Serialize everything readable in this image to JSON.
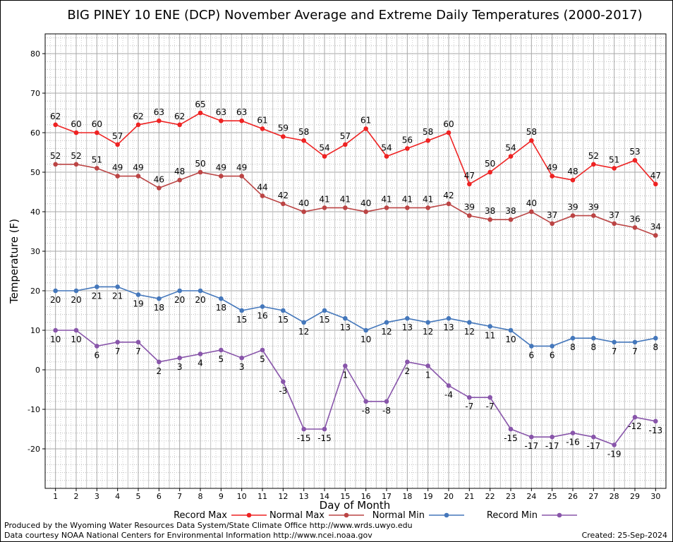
{
  "chart_data": {
    "type": "line",
    "title": "BIG PINEY 10 ENE (DCP) November Average and Extreme Daily Temperatures (2000-2017)",
    "xlabel": "Day of Month",
    "ylabel": "Temperature (F)",
    "ylim": [
      -30,
      85
    ],
    "yticks": [
      80,
      70,
      60,
      50,
      40,
      30,
      20,
      10,
      0,
      -10,
      -20
    ],
    "grid": true,
    "legend_position": "bottom",
    "x": [
      1,
      2,
      3,
      4,
      5,
      6,
      7,
      8,
      9,
      10,
      11,
      12,
      13,
      14,
      15,
      16,
      17,
      18,
      19,
      20,
      21,
      22,
      23,
      24,
      25,
      26,
      27,
      28,
      29,
      30
    ],
    "series": [
      {
        "name": "Record Max",
        "color": "#ee2222",
        "label_pos": "above",
        "values": [
          62,
          60,
          60,
          57,
          62,
          63,
          62,
          65,
          63,
          63,
          61,
          59,
          58,
          54,
          57,
          61,
          54,
          56,
          58,
          60,
          47,
          50,
          54,
          58,
          49,
          48,
          52,
          51,
          53,
          47
        ]
      },
      {
        "name": "Normal Max",
        "color": "#bb4444",
        "label_pos": "above",
        "values": [
          52,
          52,
          51,
          49,
          49,
          46,
          48,
          50,
          49,
          49,
          44,
          42,
          40,
          41,
          41,
          40,
          41,
          41,
          41,
          42,
          39,
          38,
          38,
          40,
          37,
          39,
          39,
          37,
          36,
          34
        ]
      },
      {
        "name": "Normal Min",
        "color": "#4477bb",
        "label_pos": "below",
        "values": [
          20,
          20,
          21,
          21,
          19,
          18,
          20,
          20,
          18,
          15,
          16,
          15,
          12,
          15,
          13,
          10,
          12,
          13,
          12,
          13,
          12,
          11,
          10,
          6,
          6,
          8,
          8,
          7,
          7,
          8
        ]
      },
      {
        "name": "Record Min",
        "color": "#8855aa",
        "label_pos": "below",
        "values": [
          10,
          10,
          6,
          7,
          7,
          2,
          3,
          4,
          5,
          3,
          5,
          -3,
          -15,
          -15,
          1,
          -8,
          -8,
          2,
          1,
          -4,
          -7,
          -7,
          -15,
          -17,
          -17,
          -16,
          -17,
          -19,
          -12,
          -13
        ]
      }
    ]
  },
  "footer": {
    "line1": "Produced by the Wyoming Water Resources Data System/State Climate Office http://www.wrds.uwyo.edu",
    "line2": "Data courtesy NOAA National Centers for Environmental Information http://www.ncei.noaa.gov",
    "created": "Created: 25-Sep-2024"
  }
}
